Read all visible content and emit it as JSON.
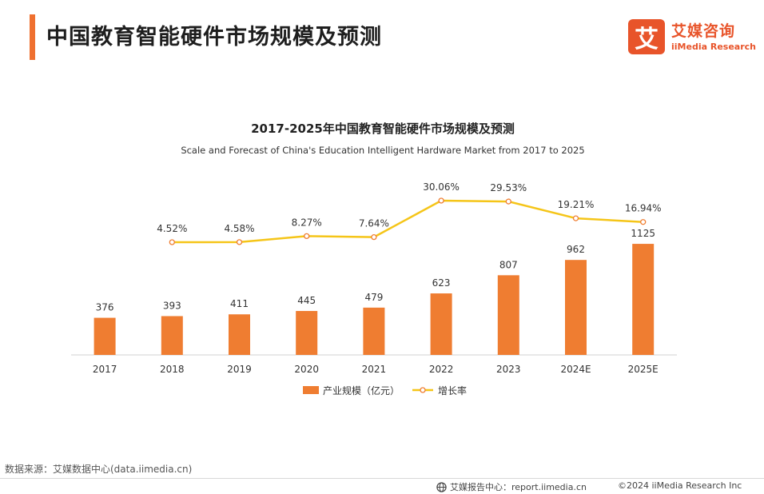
{
  "header": {
    "title": "中国教育智能硬件市场规模及预测",
    "accent_color": "#ef7030"
  },
  "logo": {
    "mark": "艾",
    "name": "艾媒咨询",
    "english": "iiMedia Research",
    "color": "#e8542a"
  },
  "chart_data": {
    "type": "bar",
    "title": "2017-2025年中国教育智能硬件市场规模及预测",
    "subtitle": "Scale and Forecast of China's Education Intelligent Hardware Market from 2017 to 2025",
    "categories": [
      "2017",
      "2018",
      "2019",
      "2020",
      "2021",
      "2022",
      "2023",
      "2024E",
      "2025E"
    ],
    "series": [
      {
        "name": "产业规模（亿元）",
        "type": "bar",
        "color": "#ef7d31",
        "values": [
          376,
          393,
          411,
          445,
          479,
          623,
          807,
          962,
          1125
        ],
        "labels": [
          "376",
          "393",
          "411",
          "445",
          "479",
          "623",
          "807",
          "962",
          "1125"
        ]
      },
      {
        "name": "增长率",
        "type": "line",
        "color": "#f5c518",
        "values": [
          null,
          4.52,
          4.58,
          8.27,
          7.64,
          30.06,
          29.53,
          19.21,
          16.94
        ],
        "labels": [
          "",
          "4.52%",
          "4.58%",
          "8.27%",
          "7.64%",
          "30.06%",
          "29.53%",
          "19.21%",
          "16.94%"
        ]
      }
    ],
    "legend": "bottom-center",
    "grid": false
  },
  "footer": {
    "source": "数据来源：艾媒数据中心(data.iimedia.cn)",
    "report": "艾媒报告中心：report.iimedia.cn",
    "copyright": "©2024  iiMedia Research  Inc"
  }
}
